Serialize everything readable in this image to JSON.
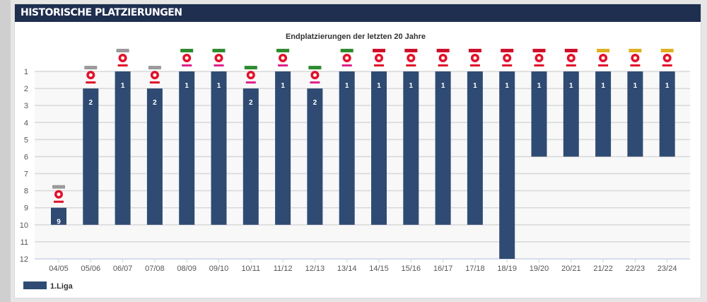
{
  "header": {
    "title": "HISTORISCHE PLATZIERUNGEN"
  },
  "chart_data": {
    "type": "bar",
    "title": "Endplatzierungen der letzten 20 Jahre",
    "categories": [
      "04/05",
      "05/06",
      "06/07",
      "07/08",
      "08/09",
      "09/10",
      "10/11",
      "11/12",
      "12/13",
      "13/14",
      "14/15",
      "15/16",
      "16/17",
      "17/18",
      "18/19",
      "19/20",
      "20/21",
      "21/22",
      "22/23",
      "23/24"
    ],
    "series": [
      {
        "name": "1.Liga",
        "values": [
          9,
          2,
          1,
          2,
          1,
          1,
          2,
          1,
          2,
          1,
          1,
          1,
          1,
          1,
          1,
          1,
          1,
          1,
          1,
          1
        ],
        "league_size": [
          10,
          10,
          10,
          10,
          10,
          10,
          10,
          10,
          10,
          10,
          10,
          10,
          10,
          10,
          12,
          6,
          6,
          6,
          6,
          6
        ]
      }
    ],
    "y_axis": {
      "inverted": true,
      "range": [
        1,
        12
      ],
      "ticks": [
        1,
        2,
        3,
        4,
        5,
        6,
        7,
        8,
        9,
        10,
        11,
        12
      ]
    },
    "grid": true,
    "legend": "bottom-left",
    "bar_color": "#2f4b73",
    "logos": [
      "t-mobile",
      "t-mobile",
      "t-mobile",
      "t-mobile",
      "tipp3",
      "tipp3",
      "tipp3",
      "tipp3",
      "tipp3",
      "tipp3",
      "tipico",
      "tipico",
      "tipico",
      "tipico",
      "tipico",
      "tipico",
      "tipico",
      "admiral",
      "admiral",
      "admiral"
    ]
  },
  "logo_colors": {
    "t-mobile": "#9a9a9a",
    "tipp3": "#2e8b2e",
    "tipico": "#d0102a",
    "admiral": "#e0b020"
  }
}
